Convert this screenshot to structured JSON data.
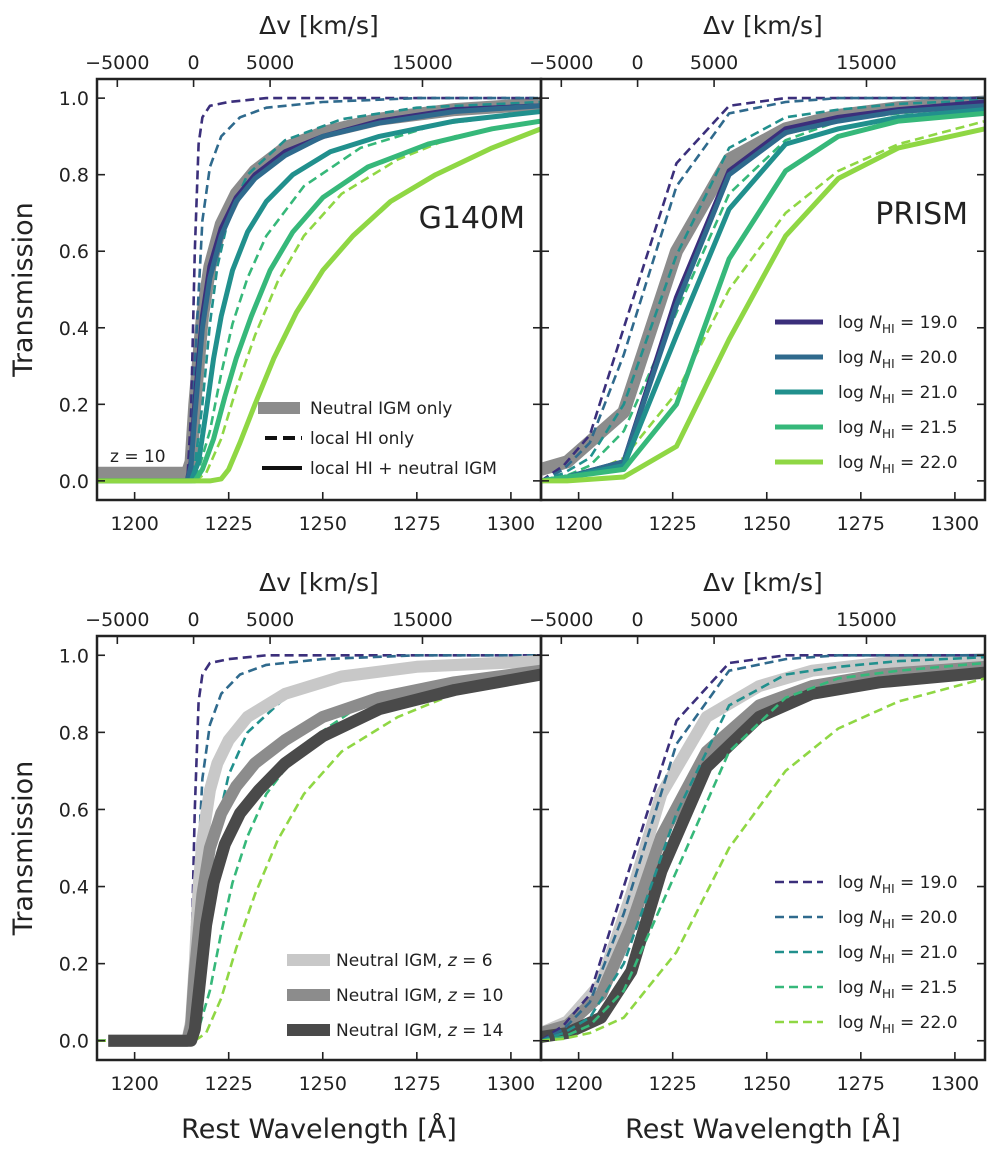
{
  "chart_data": {
    "type": "line",
    "figure": "Transmission vs rest wavelength for damped Lyman-alpha absorbers",
    "xlabel": "Rest Wavelength [Å]",
    "ylabel": "Transmission",
    "top_xlabel": "Δv [km/s]",
    "top_ticks": [
      "−5000",
      "0",
      "5000",
      "15000"
    ],
    "xticks": [
      "1200",
      "1225",
      "1250",
      "1275",
      "1300"
    ],
    "yticks": [
      "0.0",
      "0.2",
      "0.4",
      "0.6",
      "0.8",
      "1.0"
    ],
    "xlim": [
      1190,
      1308
    ],
    "ylim": [
      -0.05,
      1.05
    ],
    "colors": {
      "n19": "#3b2f7b",
      "n20": "#2f6a8d",
      "n21": "#21908d",
      "n215": "#36b87a",
      "n22": "#8fd744",
      "igm_z6": "#c8c8c8",
      "igm_z10": "#8c8c8c",
      "igm_z14": "#4a4a4a"
    },
    "panels": [
      {
        "id": "top-left",
        "label": "G140M",
        "annotation": "z = 10",
        "legend": {
          "placement": "lower-right",
          "entries": [
            "Neutral IGM only",
            "local HI only",
            "local HI + neutral IGM"
          ]
        }
      },
      {
        "id": "top-right",
        "label": "PRISM",
        "legend": {
          "placement": "lower-right",
          "style": "solid",
          "entries": [
            {
              "prefix": "log ",
              "sym": "N",
              "sub": "HI",
              "value": " = 19.0"
            },
            {
              "prefix": "log ",
              "sym": "N",
              "sub": "HI",
              "value": " = 20.0"
            },
            {
              "prefix": "log ",
              "sym": "N",
              "sub": "HI",
              "value": " = 21.0"
            },
            {
              "prefix": "log ",
              "sym": "N",
              "sub": "HI",
              "value": " = 21.5"
            },
            {
              "prefix": "log ",
              "sym": "N",
              "sub": "HI",
              "value": " = 22.0"
            }
          ]
        }
      },
      {
        "id": "bottom-left",
        "legend": {
          "placement": "lower-right",
          "entries": [
            {
              "text": "Neutral IGM, ",
              "z": "z",
              "value": " = 6"
            },
            {
              "text": "Neutral IGM, ",
              "z": "z",
              "value": " = 10"
            },
            {
              "text": "Neutral IGM, ",
              "z": "z",
              "value": " = 14"
            }
          ]
        }
      },
      {
        "id": "bottom-right",
        "legend": {
          "placement": "lower-right",
          "style": "dashed",
          "entries": [
            {
              "prefix": "log ",
              "sym": "N",
              "sub": "HI",
              "value": " = 19.0"
            },
            {
              "prefix": "log ",
              "sym": "N",
              "sub": "HI",
              "value": " = 20.0"
            },
            {
              "prefix": "log ",
              "sym": "N",
              "sub": "HI",
              "value": " = 21.0"
            },
            {
              "prefix": "log ",
              "sym": "N",
              "sub": "HI",
              "value": " = 21.5"
            },
            {
              "prefix": "log ",
              "sym": "N",
              "sub": "HI",
              "value": " = 22.0"
            }
          ]
        }
      }
    ],
    "g140m": {
      "local_only": {
        "n19": {
          "x": [
            1190,
            1214,
            1215,
            1216,
            1217,
            1218,
            1220,
            1225,
            1235,
            1250,
            1275,
            1308
          ],
          "y": [
            0,
            0,
            0.18,
            0.6,
            0.88,
            0.95,
            0.98,
            0.99,
            1.0,
            1.0,
            1.0,
            1.0
          ]
        },
        "n20": {
          "x": [
            1190,
            1214,
            1215,
            1216,
            1218,
            1220,
            1223,
            1228,
            1235,
            1250,
            1275,
            1308
          ],
          "y": [
            0,
            0,
            0.08,
            0.3,
            0.68,
            0.82,
            0.9,
            0.95,
            0.975,
            0.99,
            1.0,
            1.0
          ]
        },
        "n21": {
          "x": [
            1190,
            1214,
            1216,
            1218,
            1220,
            1222,
            1225,
            1230,
            1240,
            1255,
            1275,
            1308
          ],
          "y": [
            0,
            0,
            0.04,
            0.2,
            0.41,
            0.56,
            0.69,
            0.8,
            0.89,
            0.945,
            0.975,
            0.99
          ]
        },
        "n215": {
          "x": [
            1190,
            1215,
            1217,
            1220,
            1223,
            1226,
            1230,
            1235,
            1245,
            1260,
            1280,
            1308
          ],
          "y": [
            0,
            0,
            0.03,
            0.13,
            0.28,
            0.41,
            0.53,
            0.64,
            0.77,
            0.87,
            0.93,
            0.965
          ]
        },
        "n22": {
          "x": [
            1190,
            1216,
            1219,
            1223,
            1227,
            1232,
            1238,
            1245,
            1255,
            1270,
            1285,
            1308
          ],
          "y": [
            0,
            0,
            0.02,
            0.11,
            0.24,
            0.38,
            0.52,
            0.64,
            0.75,
            0.84,
            0.9,
            0.94
          ]
        }
      },
      "combined": {
        "n19": {
          "x": [
            1190,
            1214,
            1215,
            1216,
            1218,
            1220,
            1223,
            1227,
            1232,
            1240,
            1250,
            1265,
            1285,
            1308
          ],
          "y": [
            0,
            0,
            0.05,
            0.2,
            0.43,
            0.56,
            0.66,
            0.74,
            0.8,
            0.86,
            0.9,
            0.94,
            0.97,
            0.98
          ]
        },
        "n20": {
          "x": [
            1190,
            1214,
            1215,
            1216,
            1218,
            1220,
            1223,
            1227,
            1232,
            1240,
            1250,
            1265,
            1285,
            1308
          ],
          "y": [
            0,
            0,
            0.04,
            0.17,
            0.4,
            0.53,
            0.64,
            0.73,
            0.79,
            0.85,
            0.9,
            0.935,
            0.965,
            0.98
          ]
        },
        "n21": {
          "x": [
            1190,
            1215,
            1217,
            1219,
            1221,
            1223,
            1226,
            1230,
            1235,
            1242,
            1252,
            1265,
            1285,
            1308
          ],
          "y": [
            0,
            0,
            0.05,
            0.18,
            0.32,
            0.43,
            0.55,
            0.65,
            0.73,
            0.8,
            0.86,
            0.9,
            0.94,
            0.965
          ]
        },
        "n215": {
          "x": [
            1190,
            1216,
            1218,
            1221,
            1224,
            1227,
            1231,
            1236,
            1242,
            1250,
            1262,
            1278,
            1295,
            1308
          ],
          "y": [
            0,
            0,
            0.03,
            0.11,
            0.22,
            0.32,
            0.43,
            0.55,
            0.65,
            0.74,
            0.82,
            0.88,
            0.92,
            0.94
          ]
        },
        "n22": {
          "x": [
            1190,
            1220,
            1223,
            1225,
            1228,
            1232,
            1237,
            1243,
            1250,
            1258,
            1268,
            1280,
            1295,
            1308
          ],
          "y": [
            0,
            0,
            0.005,
            0.03,
            0.1,
            0.2,
            0.32,
            0.44,
            0.55,
            0.64,
            0.73,
            0.8,
            0.87,
            0.92
          ]
        }
      },
      "igm_z10": {
        "x": [
          1190,
          1214,
          1215,
          1216,
          1218,
          1220,
          1223,
          1227,
          1232,
          1240,
          1250,
          1265,
          1285,
          1308
        ],
        "y": [
          0.02,
          0.02,
          0.05,
          0.2,
          0.43,
          0.56,
          0.67,
          0.75,
          0.81,
          0.87,
          0.91,
          0.945,
          0.97,
          0.985
        ]
      }
    },
    "prism": {
      "local_only": {
        "n19": {
          "x": [
            1190,
            1196,
            1203,
            1212,
            1226,
            1240,
            1255,
            1269,
            1285,
            1308
          ],
          "y": [
            0,
            0.04,
            0.12,
            0.4,
            0.83,
            0.98,
            1.0,
            1.0,
            1.0,
            1.0
          ]
        },
        "n20": {
          "x": [
            1190,
            1196,
            1203,
            1212,
            1226,
            1240,
            1255,
            1269,
            1285,
            1308
          ],
          "y": [
            0,
            0.03,
            0.1,
            0.33,
            0.77,
            0.96,
            0.99,
            1.0,
            1.0,
            1.0
          ]
        },
        "n21": {
          "x": [
            1190,
            1196,
            1203,
            1212,
            1226,
            1240,
            1255,
            1269,
            1285,
            1308
          ],
          "y": [
            0,
            0.02,
            0.06,
            0.2,
            0.59,
            0.87,
            0.95,
            0.97,
            0.985,
            0.995
          ]
        },
        "n215": {
          "x": [
            1190,
            1196,
            1203,
            1212,
            1226,
            1240,
            1255,
            1269,
            1285,
            1308
          ],
          "y": [
            0,
            0.01,
            0.04,
            0.13,
            0.44,
            0.75,
            0.89,
            0.94,
            0.96,
            0.98
          ]
        },
        "n22": {
          "x": [
            1190,
            1196,
            1203,
            1212,
            1226,
            1240,
            1255,
            1269,
            1285,
            1308
          ],
          "y": [
            0,
            0.005,
            0.02,
            0.06,
            0.23,
            0.5,
            0.7,
            0.81,
            0.88,
            0.94
          ]
        }
      },
      "combined": {
        "n19": {
          "x": [
            1190,
            1197,
            1212,
            1226,
            1240,
            1255,
            1269,
            1285,
            1308
          ],
          "y": [
            0,
            0.01,
            0.05,
            0.48,
            0.81,
            0.92,
            0.95,
            0.97,
            0.99
          ]
        },
        "n20": {
          "x": [
            1190,
            1197,
            1212,
            1226,
            1240,
            1255,
            1269,
            1285,
            1308
          ],
          "y": [
            0,
            0.01,
            0.05,
            0.46,
            0.8,
            0.91,
            0.94,
            0.965,
            0.98
          ]
        },
        "n21": {
          "x": [
            1190,
            1197,
            1212,
            1226,
            1240,
            1255,
            1269,
            1285,
            1308
          ],
          "y": [
            0,
            0.01,
            0.04,
            0.38,
            0.71,
            0.88,
            0.92,
            0.95,
            0.97
          ]
        },
        "n215": {
          "x": [
            1190,
            1197,
            1212,
            1226,
            1240,
            1255,
            1269,
            1285,
            1308
          ],
          "y": [
            0,
            0.01,
            0.03,
            0.2,
            0.58,
            0.81,
            0.9,
            0.94,
            0.96
          ]
        },
        "n22": {
          "x": [
            1190,
            1197,
            1212,
            1226,
            1240,
            1255,
            1269,
            1285,
            1308
          ],
          "y": [
            0,
            0,
            0.01,
            0.09,
            0.37,
            0.64,
            0.79,
            0.87,
            0.92
          ]
        }
      },
      "igm_z10": {
        "x": [
          1190,
          1197,
          1212,
          1226,
          1240,
          1255,
          1269,
          1285,
          1308
        ],
        "y": [
          0.03,
          0.05,
          0.18,
          0.6,
          0.84,
          0.92,
          0.955,
          0.975,
          0.99
        ]
      }
    },
    "g140m_igm": {
      "z6": {
        "x": [
          1193,
          1214,
          1215,
          1216,
          1217,
          1218,
          1220,
          1222,
          1225,
          1230,
          1240,
          1255,
          1275,
          1308
        ],
        "y": [
          0,
          0,
          0.05,
          0.2,
          0.4,
          0.52,
          0.65,
          0.72,
          0.78,
          0.84,
          0.9,
          0.945,
          0.97,
          0.985
        ]
      },
      "z10": {
        "x": [
          1193,
          1214,
          1215,
          1216,
          1218,
          1220,
          1223,
          1227,
          1232,
          1240,
          1250,
          1265,
          1285,
          1308
        ],
        "y": [
          0,
          0,
          0.04,
          0.18,
          0.38,
          0.5,
          0.59,
          0.66,
          0.72,
          0.78,
          0.84,
          0.89,
          0.93,
          0.96
        ]
      },
      "z14": {
        "x": [
          1193,
          1215,
          1216,
          1217,
          1219,
          1221,
          1224,
          1228,
          1233,
          1240,
          1250,
          1265,
          1285,
          1308
        ],
        "y": [
          0,
          0,
          0.03,
          0.12,
          0.3,
          0.41,
          0.51,
          0.59,
          0.65,
          0.72,
          0.79,
          0.86,
          0.91,
          0.95
        ]
      }
    },
    "prism_igm": {
      "z6": {
        "x": [
          1190,
          1197,
          1206,
          1214,
          1222,
          1234,
          1248,
          1262,
          1280,
          1308
        ],
        "y": [
          0.02,
          0.05,
          0.15,
          0.38,
          0.64,
          0.84,
          0.92,
          0.96,
          0.98,
          0.99
        ]
      },
      "z10": {
        "x": [
          1190,
          1197,
          1206,
          1214,
          1222,
          1234,
          1248,
          1262,
          1280,
          1308
        ],
        "y": [
          0.02,
          0.04,
          0.12,
          0.3,
          0.53,
          0.75,
          0.87,
          0.92,
          0.95,
          0.97
        ]
      },
      "z14": {
        "x": [
          1190,
          1197,
          1206,
          1214,
          1222,
          1234,
          1248,
          1262,
          1280,
          1308
        ],
        "y": [
          0.01,
          0.02,
          0.06,
          0.18,
          0.44,
          0.71,
          0.84,
          0.9,
          0.93,
          0.955
        ]
      }
    },
    "dv_tick_wavelengths": [
      1195.4,
      1215.67,
      1236,
      1276.5
    ]
  }
}
